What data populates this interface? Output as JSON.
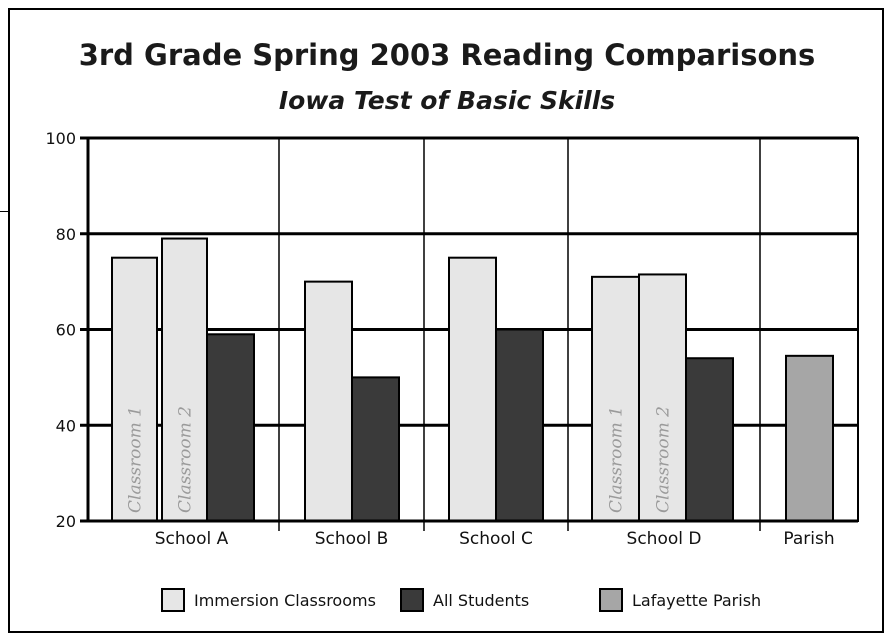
{
  "chart_data": {
    "type": "bar",
    "title": "3rd Grade Spring 2003 Reading Comparisons",
    "subtitle": "Iowa Test of Basic Skills",
    "ylim": [
      20,
      100
    ],
    "yticks": [
      20,
      40,
      60,
      80,
      100
    ],
    "grid": "horizontal lines at 40, 60, 80, 100; vertical dividers between groups",
    "legend_placement": "bottom",
    "colors": {
      "Immersion Classrooms": "#e6e6e6",
      "All Students": "#3a3a3a",
      "Lafayette Parish": "#a6a6a6"
    },
    "groups": [
      {
        "category": "School A",
        "bars": [
          {
            "series": "Immersion Classrooms",
            "value": 75,
            "label": "Classroom 1"
          },
          {
            "series": "Immersion Classrooms",
            "value": 79,
            "label": "Classroom 2"
          },
          {
            "series": "All Students",
            "value": 59
          }
        ]
      },
      {
        "category": "School B",
        "bars": [
          {
            "series": "Immersion Classrooms",
            "value": 70
          },
          {
            "series": "All Students",
            "value": 50
          }
        ]
      },
      {
        "category": "School C",
        "bars": [
          {
            "series": "Immersion Classrooms",
            "value": 75
          },
          {
            "series": "All Students",
            "value": 60
          }
        ]
      },
      {
        "category": "School D",
        "bars": [
          {
            "series": "Immersion Classrooms",
            "value": 71,
            "label": "Classroom 1"
          },
          {
            "series": "Immersion Classrooms",
            "value": 71.5,
            "label": "Classroom 2"
          },
          {
            "series": "All Students",
            "value": 54
          }
        ]
      },
      {
        "category": "Parish",
        "bars": [
          {
            "series": "Lafayette Parish",
            "value": 54.5
          }
        ]
      }
    ],
    "legend": [
      "Immersion Classrooms",
      "All Students",
      "Lafayette Parish"
    ]
  }
}
